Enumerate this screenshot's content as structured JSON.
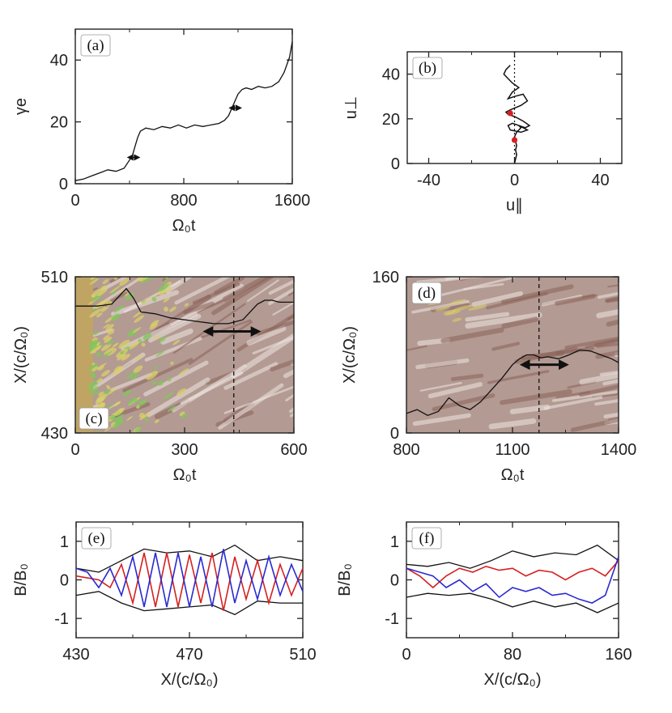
{
  "figure": {
    "colors": {
      "ink": "#111111",
      "series_red": "#d62020",
      "series_blue": "#2a2ad0",
      "map_dark": "#8a6258",
      "map_mid": "#b39a92",
      "map_light": "#efe7e3",
      "map_yellow": "#d9cf6a",
      "map_green": "#7fc85a",
      "map_tan": "#bfa464"
    }
  },
  "chart_data": [
    {
      "id": "a",
      "type": "line",
      "panel_label": "(a)",
      "xlabel": "Ω₀t",
      "ylabel": "γe",
      "xlim": [
        0,
        1600
      ],
      "ylim": [
        0,
        50
      ],
      "xticks": [
        "0",
        "800",
        "1600"
      ],
      "yticks": [
        "0",
        "20",
        "40"
      ],
      "series": [
        {
          "name": "gamma_e",
          "x": [
            0,
            60,
            120,
            180,
            240,
            300,
            360,
            390,
            420,
            440,
            460,
            480,
            520,
            580,
            640,
            700,
            760,
            820,
            880,
            940,
            1000,
            1060,
            1100,
            1130,
            1160,
            1180,
            1200,
            1230,
            1260,
            1300,
            1350,
            1400,
            1450,
            1500,
            1540,
            1580,
            1600
          ],
          "y": [
            1,
            1.5,
            2.5,
            3.5,
            4.5,
            4,
            5,
            7,
            9,
            12,
            15,
            17,
            18,
            17.5,
            18.5,
            18,
            19,
            18,
            19,
            18.5,
            19,
            19.5,
            20.5,
            22,
            25,
            27,
            29,
            30.5,
            31,
            30.5,
            31.5,
            31,
            31.5,
            33,
            36,
            41,
            46
          ]
        }
      ],
      "annotations": [
        {
          "type": "double-arrow",
          "x_center": 430,
          "y": 8.5,
          "span": 100
        },
        {
          "type": "double-arrow",
          "x_center": 1180,
          "y": 24.5,
          "span": 100
        }
      ]
    },
    {
      "id": "b",
      "type": "line",
      "panel_label": "(b)",
      "xlabel": "u∥",
      "ylabel": "u⊥",
      "xlim": [
        -50,
        50
      ],
      "ylim": [
        0,
        50
      ],
      "xticks": [
        "-40",
        "0",
        "40"
      ],
      "yticks": [
        "0",
        "20",
        "40"
      ],
      "series": [
        {
          "name": "trajectory",
          "x": [
            0,
            0.5,
            1,
            0.5,
            1,
            0.5,
            0,
            1,
            2,
            3,
            2,
            4,
            6,
            3,
            -2,
            -3,
            -1,
            2,
            5,
            7,
            4,
            0,
            -3,
            -4,
            -2,
            3,
            6,
            4,
            0,
            -3,
            -1,
            2,
            -1,
            -3,
            -5,
            -4,
            -2
          ],
          "y": [
            0,
            2,
            4,
            6,
            8,
            10,
            12,
            14,
            15,
            16,
            17,
            16,
            15,
            14,
            15,
            17,
            18,
            17,
            16,
            17,
            19,
            21,
            22,
            23,
            24,
            26,
            28,
            31,
            30,
            29,
            32,
            34,
            36,
            38,
            40,
            42,
            44
          ]
        }
      ],
      "markers": [
        {
          "x": -2,
          "y": 22.5,
          "color": "red"
        },
        {
          "x": 0,
          "y": 10.5,
          "color": "red"
        }
      ],
      "reference_lines": [
        {
          "orientation": "vertical",
          "x": 0,
          "style": "dotted"
        }
      ]
    },
    {
      "id": "c",
      "type": "heatmap",
      "panel_label": "(c)",
      "xlabel": "Ω₀t",
      "ylabel": "X/(c/Ω₀)",
      "xlim": [
        0,
        600
      ],
      "ylim": [
        430,
        510
      ],
      "xticks": [
        "0",
        "300",
        "600"
      ],
      "yticks": [
        "430",
        "510"
      ],
      "overlay_line": {
        "x": [
          0,
          60,
          100,
          120,
          140,
          160,
          180,
          220,
          260,
          300,
          340,
          380,
          420,
          460,
          480,
          500,
          520,
          540,
          560,
          580,
          600
        ],
        "y": [
          495,
          495,
          496,
          500,
          504,
          499,
          492,
          491,
          489,
          488,
          487,
          486,
          486,
          488,
          492,
          496,
          498,
          498,
          497,
          497,
          497
        ]
      },
      "reference_lines": [
        {
          "orientation": "vertical",
          "x": 435,
          "style": "dashed"
        }
      ],
      "annotations": [
        {
          "type": "double-arrow",
          "x_center": 430,
          "y": 482,
          "span": 160
        }
      ]
    },
    {
      "id": "d",
      "type": "heatmap",
      "panel_label": "(d)",
      "xlabel": "Ω₀t",
      "ylabel": "X/(c/Ω₀)",
      "xlim": [
        800,
        1400
      ],
      "ylim": [
        0,
        160
      ],
      "xticks": [
        "800",
        "1100",
        "1400"
      ],
      "yticks": [
        "0",
        "160"
      ],
      "overlay_line": {
        "x": [
          800,
          830,
          860,
          890,
          920,
          950,
          980,
          1010,
          1040,
          1070,
          1100,
          1120,
          1140,
          1160,
          1180,
          1200,
          1230,
          1260,
          1290,
          1320,
          1350,
          1380,
          1400
        ],
        "y": [
          20,
          24,
          18,
          22,
          36,
          28,
          24,
          32,
          44,
          56,
          70,
          76,
          80,
          80,
          77,
          78,
          76,
          80,
          85,
          84,
          80,
          76,
          72
        ]
      },
      "reference_lines": [
        {
          "orientation": "vertical",
          "x": 1175,
          "style": "dashed"
        }
      ],
      "annotations": [
        {
          "type": "double-arrow",
          "x_center": 1190,
          "y": 70,
          "span": 140
        }
      ]
    },
    {
      "id": "e",
      "type": "line",
      "panel_label": "(e)",
      "xlabel": "X/(c/Ω₀)",
      "ylabel": "B/B₀",
      "xlim": [
        430,
        510
      ],
      "ylim": [
        -1.5,
        1.5
      ],
      "xticks": [
        "430",
        "470",
        "510"
      ],
      "yticks": [
        "-1",
        "0",
        "1"
      ],
      "series": [
        {
          "name": "envelope_upper",
          "color": "black",
          "x": [
            430,
            438,
            446,
            454,
            462,
            470,
            478,
            486,
            494,
            502,
            510
          ],
          "y": [
            0.3,
            0.2,
            0.5,
            0.8,
            0.7,
            0.75,
            0.6,
            0.9,
            0.5,
            0.6,
            0.5
          ]
        },
        {
          "name": "envelope_lower",
          "color": "black",
          "x": [
            430,
            438,
            446,
            454,
            462,
            470,
            478,
            486,
            494,
            502,
            510
          ],
          "y": [
            -0.4,
            -0.3,
            -0.6,
            -0.8,
            -0.75,
            -0.7,
            -0.65,
            -0.9,
            -0.55,
            -0.6,
            -0.6
          ]
        },
        {
          "name": "By",
          "color": "red",
          "x": [
            430,
            434,
            438,
            442,
            446,
            450,
            454,
            458,
            462,
            466,
            470,
            474,
            478,
            482,
            486,
            490,
            494,
            498,
            502,
            506,
            510
          ],
          "y": [
            0.1,
            0.05,
            0.0,
            -0.2,
            0.4,
            -0.6,
            0.7,
            -0.7,
            0.7,
            -0.7,
            0.65,
            -0.6,
            0.7,
            -0.8,
            0.6,
            -0.5,
            0.5,
            -0.6,
            0.4,
            -0.4,
            0.3
          ]
        },
        {
          "name": "Bz",
          "color": "blue",
          "x": [
            430,
            434,
            438,
            442,
            446,
            450,
            454,
            458,
            462,
            466,
            470,
            474,
            478,
            482,
            486,
            490,
            494,
            498,
            502,
            506,
            510
          ],
          "y": [
            0.3,
            0.2,
            -0.2,
            0.3,
            -0.4,
            0.6,
            -0.7,
            0.7,
            -0.7,
            0.7,
            -0.7,
            0.6,
            -0.7,
            0.8,
            -0.6,
            0.5,
            -0.5,
            0.6,
            -0.4,
            0.4,
            -0.3
          ]
        }
      ]
    },
    {
      "id": "f",
      "type": "line",
      "panel_label": "(f)",
      "xlabel": "X/(c/Ω₀)",
      "ylabel": "B/B₀",
      "xlim": [
        0,
        160
      ],
      "ylim": [
        -1.5,
        1.5
      ],
      "xticks": [
        "0",
        "80",
        "160"
      ],
      "yticks": [
        "-1",
        "0",
        "1"
      ],
      "series": [
        {
          "name": "envelope_upper",
          "color": "black",
          "x": [
            0,
            16,
            32,
            48,
            64,
            80,
            96,
            112,
            128,
            144,
            160
          ],
          "y": [
            0.4,
            0.35,
            0.45,
            0.3,
            0.5,
            0.75,
            0.6,
            0.7,
            0.65,
            0.9,
            0.5
          ]
        },
        {
          "name": "envelope_lower",
          "color": "black",
          "x": [
            0,
            16,
            32,
            48,
            64,
            80,
            96,
            112,
            128,
            144,
            160
          ],
          "y": [
            -0.45,
            -0.35,
            -0.4,
            -0.35,
            -0.5,
            -0.7,
            -0.55,
            -0.7,
            -0.6,
            -0.85,
            -0.6
          ]
        },
        {
          "name": "By",
          "color": "red",
          "x": [
            0,
            10,
            20,
            30,
            40,
            50,
            60,
            70,
            80,
            90,
            100,
            110,
            120,
            130,
            140,
            150,
            160
          ],
          "y": [
            0.3,
            0.1,
            -0.2,
            0.1,
            0.3,
            0.2,
            0.35,
            0.25,
            0.3,
            0.1,
            0.25,
            0.2,
            0.0,
            0.2,
            0.3,
            0.1,
            0.5
          ]
        },
        {
          "name": "Bz",
          "color": "blue",
          "x": [
            0,
            10,
            20,
            30,
            40,
            50,
            60,
            70,
            80,
            90,
            100,
            110,
            120,
            130,
            140,
            150,
            160
          ],
          "y": [
            0.3,
            0.2,
            0.1,
            -0.2,
            0.0,
            -0.3,
            -0.1,
            -0.45,
            -0.2,
            -0.3,
            -0.2,
            -0.4,
            -0.35,
            -0.5,
            -0.6,
            -0.4,
            0.6
          ]
        }
      ]
    }
  ]
}
